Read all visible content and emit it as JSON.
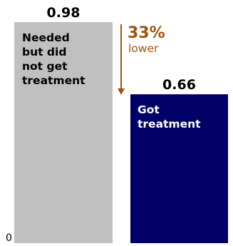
{
  "chart_data": {
    "type": "bar",
    "categories": [
      "Needed but did not get treatment",
      "Got treatment"
    ],
    "values": [
      0.98,
      0.66
    ],
    "value_labels": [
      "0.98",
      "0.66"
    ],
    "bar_text": [
      [
        "Needed",
        "but did",
        "not get",
        "treatment"
      ],
      [
        "Got",
        "treatment"
      ]
    ],
    "bar_colors": [
      "#c0c0c0",
      "#000066"
    ],
    "bar_text_colors": [
      "#000000",
      "#ffffff"
    ],
    "ylim": [
      0,
      1
    ],
    "y_tick_labels": [
      "0"
    ],
    "annotation": {
      "percent": "33%",
      "text": "lower",
      "color": "#a0520e"
    },
    "title": "",
    "xlabel": "",
    "ylabel": ""
  }
}
